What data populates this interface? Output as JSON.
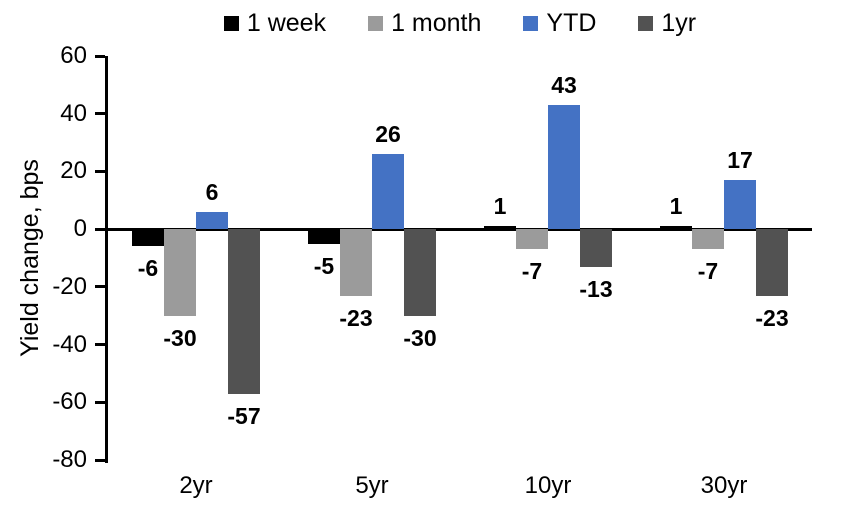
{
  "chart_data": {
    "type": "bar",
    "categories": [
      "2yr",
      "5yr",
      "10yr",
      "30yr"
    ],
    "series": [
      {
        "name": "1 week",
        "color": "#000000",
        "values": [
          -6,
          -5,
          1,
          1
        ]
      },
      {
        "name": "1 month",
        "color": "#9B9B9B",
        "values": [
          -30,
          -23,
          -7,
          -7
        ]
      },
      {
        "name": "YTD",
        "color": "#4472C4",
        "values": [
          6,
          26,
          43,
          17
        ]
      },
      {
        "name": "1yr",
        "color": "#525252",
        "values": [
          -57,
          -30,
          -13,
          -23
        ]
      }
    ],
    "title": "",
    "xlabel": "",
    "ylabel": "Yield change, bps",
    "ylim": [
      -80,
      60
    ],
    "ytick_step": 20,
    "ytick_labels": [
      "60",
      "40",
      "20",
      "0",
      "-20",
      "-40",
      "-60",
      "-80"
    ],
    "data_labels": true,
    "grid": false,
    "legend_position": "top",
    "axis_color": "#000000",
    "background_color": "#ffffff"
  }
}
